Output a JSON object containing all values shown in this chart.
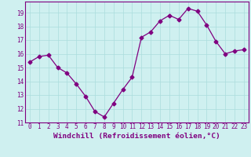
{
  "x": [
    0,
    1,
    2,
    3,
    4,
    5,
    6,
    7,
    8,
    9,
    10,
    11,
    12,
    13,
    14,
    15,
    16,
    17,
    18,
    19,
    20,
    21,
    22,
    23
  ],
  "y": [
    15.4,
    15.8,
    15.9,
    15.0,
    14.6,
    13.8,
    12.9,
    11.8,
    11.4,
    12.4,
    13.4,
    14.3,
    17.2,
    17.6,
    18.4,
    18.8,
    18.5,
    19.3,
    19.1,
    18.1,
    16.9,
    16.0,
    16.2,
    16.3
  ],
  "line_color": "#800080",
  "marker": "D",
  "marker_size": 2.5,
  "bg_color": "#cff0f0",
  "grid_color": "#aadddd",
  "xlim": [
    -0.5,
    23.5
  ],
  "ylim": [
    11,
    19.8
  ],
  "yticks": [
    11,
    12,
    13,
    14,
    15,
    16,
    17,
    18,
    19
  ],
  "xticks": [
    0,
    1,
    2,
    3,
    4,
    5,
    6,
    7,
    8,
    9,
    10,
    11,
    12,
    13,
    14,
    15,
    16,
    17,
    18,
    19,
    20,
    21,
    22,
    23
  ],
  "xlabel": "Windchill (Refroidissement éolien,°C)",
  "xlabel_color": "#800080",
  "tick_color": "#800080",
  "spine_color": "#800080",
  "tick_fontsize": 5.5,
  "xlabel_fontsize": 6.8
}
